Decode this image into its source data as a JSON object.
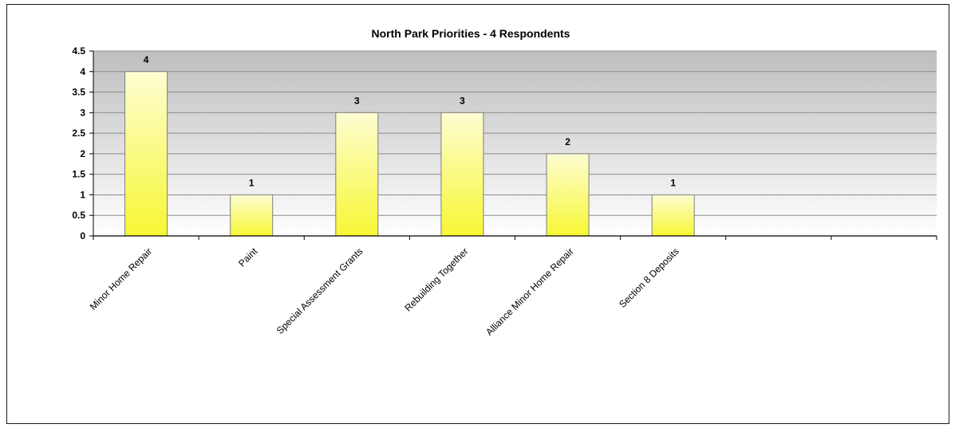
{
  "chart_data": {
    "type": "bar",
    "title": "North Park Priorities -  4 Respondents",
    "categories": [
      "Minor Home Repair",
      "Paint",
      "Special Assessment Grants",
      "Rebuilding Together",
      "Alliance Minor Home Repair",
      "Section 8 Deposits",
      "",
      ""
    ],
    "values": [
      4,
      1,
      3,
      3,
      2,
      1,
      null,
      null
    ],
    "data_labels": [
      "4",
      "1",
      "3",
      "3",
      "2",
      "1",
      "",
      ""
    ],
    "yticks": [
      "0",
      "0.5",
      "1",
      "1.5",
      "2",
      "2.5",
      "3",
      "3.5",
      "4",
      "4.5"
    ],
    "ylim": [
      0,
      4.5
    ],
    "xlabel": "",
    "ylabel": "",
    "grid": true,
    "legend": "none",
    "colors": {
      "bar_top": "#fdfdd2",
      "bar_bottom": "#f7f735",
      "bar_edge": "#7f7f7f",
      "plot_top": "#bebebe",
      "plot_bottom": "#ffffff",
      "gridline": "#8c8c8c"
    }
  }
}
